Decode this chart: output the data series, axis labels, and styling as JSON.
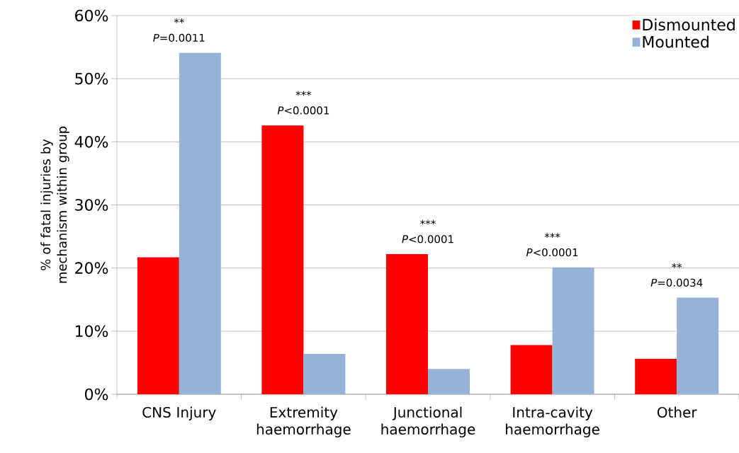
{
  "chart_data": {
    "type": "bar",
    "ylabel": "% of fatal injuries by mechanism within group",
    "categories": [
      "CNS Injury",
      "Extremity haemorrhage",
      "Junctional haemorrhage",
      "Intra-cavity haemorrhage",
      "Other"
    ],
    "series": [
      {
        "name": "Dismounted",
        "color": "#ff0000",
        "values": [
          21.7,
          42.6,
          22.2,
          7.8,
          5.6
        ]
      },
      {
        "name": "Mounted",
        "color": "#95b3d7",
        "values": [
          54.1,
          6.4,
          4.0,
          20.1,
          15.3
        ]
      }
    ],
    "ylim": [
      0,
      60
    ],
    "yticks": [
      {
        "value": 0,
        "label": "0%"
      },
      {
        "value": 10,
        "label": "10%"
      },
      {
        "value": 20,
        "label": "20%"
      },
      {
        "value": 30,
        "label": "30%"
      },
      {
        "value": 40,
        "label": "40%"
      },
      {
        "value": 50,
        "label": "50%"
      },
      {
        "value": 60,
        "label": "60%"
      }
    ],
    "grid": "y",
    "legend": "top right",
    "annotations": [
      "**",
      "*P*=0.0011",
      "***",
      "*P*<0.0001",
      "***",
      "*P*<0.0001",
      "***",
      "*P*<0.0001",
      "**",
      "*P*=0.0034"
    ]
  }
}
